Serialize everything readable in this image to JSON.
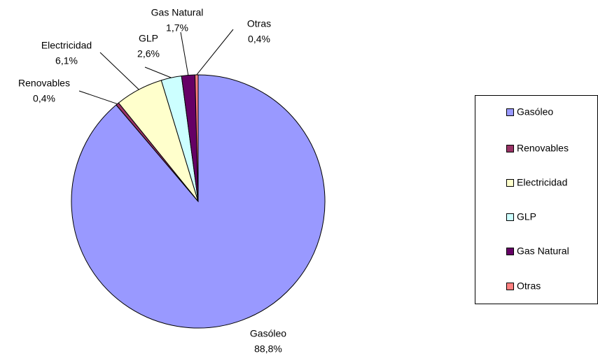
{
  "chart_data": {
    "type": "pie",
    "categories": [
      "Gasóleo",
      "Renovables",
      "Electricidad",
      "GLP",
      "Gas Natural",
      "Otras"
    ],
    "values": [
      88.8,
      0.4,
      6.1,
      2.6,
      1.7,
      0.4
    ],
    "value_labels": [
      "88,8%",
      "0,4%",
      "6,1%",
      "2,6%",
      "1,7%",
      "0,4%"
    ],
    "colors": [
      "#9999ff",
      "#993366",
      "#ffffcc",
      "#ccffff",
      "#660066",
      "#ff8080"
    ],
    "legend": "right"
  }
}
